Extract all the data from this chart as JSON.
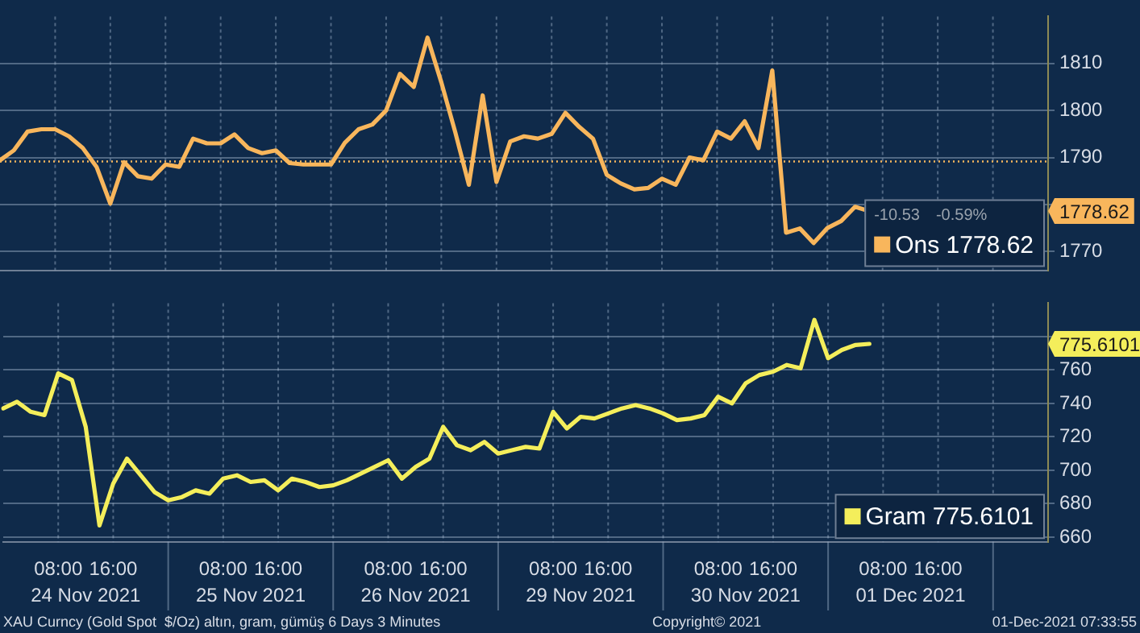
{
  "chart_data": [
    {
      "type": "line",
      "legend": "bottom right",
      "grid": true,
      "marker": "none",
      "tick_labels": "y",
      "categories": [
        null,
        null,
        null,
        null,
        null,
        null,
        null,
        null,
        null,
        null,
        null,
        null,
        null,
        null,
        null,
        null,
        null,
        null,
        null,
        null,
        null,
        null,
        null,
        null,
        null,
        null,
        null,
        null,
        null,
        null,
        null,
        null,
        null,
        null,
        null,
        null,
        null,
        null,
        null,
        null,
        null,
        null,
        null,
        null,
        null,
        null,
        null,
        null,
        null,
        null,
        null,
        null,
        null,
        null,
        null,
        null,
        null,
        null,
        null,
        null,
        null,
        null,
        null,
        null,
        null,
        null,
        null,
        null,
        null,
        null,
        null,
        null,
        null,
        null,
        null,
        null,
        null
      ],
      "ylim": [
        1766,
        1820
      ],
      "yticks": [
        1770,
        {
          "value": 1780,
          "label": null
        },
        1790,
        1800,
        1810
      ],
      "ref_lines": [
        {
          "axis": "y",
          "value": 1789.15,
          "color": "#f8b65c",
          "line_style": "dotted"
        }
      ],
      "annotations": [
        "-10.53",
        "-0.59%",
        "1778.62"
      ],
      "series": [
        {
          "name": "Ons 1778.62",
          "color": "#f8b65c",
          "values": [
            1789.4,
            1791.5,
            1795.5,
            1796,
            1796,
            1794.5,
            1792,
            1788,
            1780.2,
            1789,
            1786,
            1785.5,
            1788.5,
            1788,
            1794,
            1793,
            1793,
            1794.9,
            1792,
            1790.9,
            1791.5,
            1788.8,
            1788.5,
            1788.5,
            1788.5,
            1793.1,
            1796,
            1797,
            1800,
            1807.8,
            1805,
            1815.5,
            1806,
            1795.5,
            1784.2,
            1803.2,
            1784.8,
            1793.4,
            1794.5,
            1794,
            1795,
            1799.5,
            1796.5,
            1794,
            1786.3,
            1784.5,
            1783.2,
            1783.5,
            1785.5,
            1784.2,
            1790,
            1789.4,
            1795.5,
            1794,
            1797.7,
            1792,
            1808.5,
            1774,
            1774.9,
            1771.8,
            1775,
            1776.5,
            1779.5,
            1778.62,
            null,
            null,
            null,
            null,
            null,
            null,
            null,
            null,
            null,
            null,
            null,
            null,
            null
          ]
        }
      ]
    },
    {
      "type": "line",
      "legend": "bottom right",
      "grid": true,
      "marker": "none",
      "categories": [
        null,
        null,
        null,
        null,
        "08:00",
        null,
        null,
        null,
        "16:00",
        null,
        null,
        null,
        null,
        null,
        null,
        null,
        "08:00",
        null,
        null,
        null,
        "16:00",
        null,
        null,
        null,
        null,
        null,
        null,
        null,
        "08:00",
        null,
        null,
        null,
        "16:00",
        null,
        null,
        null,
        null,
        null,
        null,
        null,
        "08:00",
        null,
        null,
        null,
        "16:00",
        null,
        null,
        null,
        null,
        null,
        null,
        null,
        "08:00",
        null,
        null,
        null,
        "16:00",
        null,
        null,
        null,
        null,
        null,
        null,
        null,
        "08:00",
        null,
        null,
        null,
        "16:00",
        null,
        null,
        null,
        null,
        null,
        null,
        null,
        null
      ],
      "ylim": [
        657,
        800
      ],
      "yticks": [
        660,
        680,
        700,
        720,
        740,
        760,
        {
          "value": 780,
          "label": null
        }
      ],
      "annotations": [
        "24 Nov 2021",
        "25 Nov 2021",
        "26 Nov 2021",
        "29 Nov 2021",
        "30 Nov 2021",
        "01 Dec 2021",
        "XAU Curncy (Gold Spot  $/Oz) altın, gram, gümüş 6 Days 3 Minutes",
        "Copyright© 2021",
        "01-Dec-2021 07:33:55",
        "775.6101"
      ],
      "series": [
        {
          "name": "Gram 775.6101",
          "color": "#f4ee5b",
          "values": [
            737,
            741,
            735,
            733,
            758,
            754,
            726,
            667,
            692,
            707,
            697,
            687,
            682,
            684,
            688,
            686,
            695,
            697,
            693,
            694,
            688,
            695,
            693,
            690,
            691,
            694,
            698,
            702,
            706,
            695,
            702,
            707,
            726,
            715,
            712,
            717,
            710,
            712,
            714,
            713,
            735,
            725,
            732,
            731,
            734,
            737,
            739,
            737,
            734,
            730,
            731,
            733,
            744,
            740,
            752,
            757,
            759,
            763,
            761,
            790,
            767,
            772,
            775,
            775.6101,
            null,
            null,
            null,
            null,
            null,
            null,
            null,
            null,
            null,
            null,
            null,
            null,
            null
          ]
        }
      ]
    }
  ]
}
